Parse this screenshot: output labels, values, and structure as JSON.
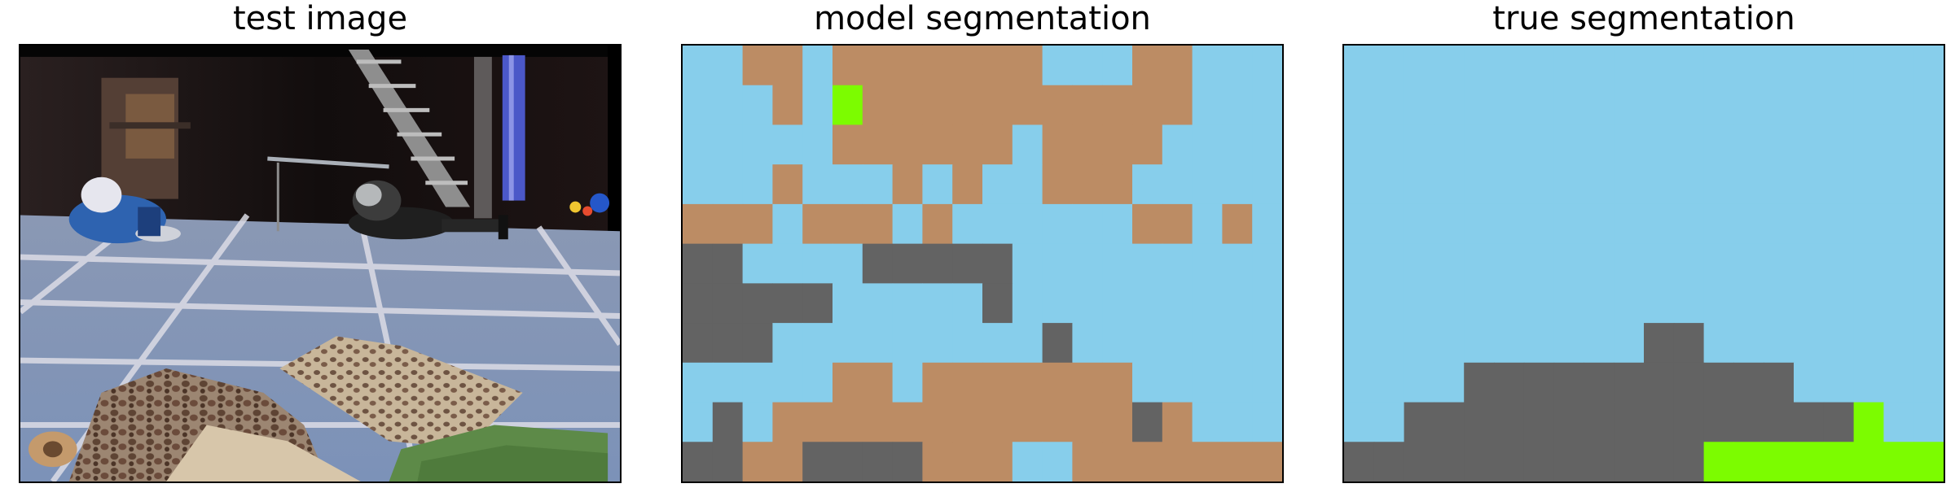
{
  "panels": [
    {
      "id": "test",
      "title": "test image"
    },
    {
      "id": "model",
      "title": "model segmentation"
    },
    {
      "id": "true",
      "title": "true segmentation"
    }
  ],
  "palette": {
    "B": "#87ceeb",
    "R": "#bc8c64",
    "G": "#636363",
    "L": "#7cfc00"
  },
  "grid": {
    "cols": 20,
    "rows": 11
  },
  "model_segmentation": [
    "BBRRBRRRRRRRBBBRRBBB",
    "BBBRBLRRRRRRRRRRRBBB",
    "BBBBBRRRRRRBRRRRBBBB",
    "BBBRBBBRBRBBRRRBBBBB",
    "RRRBRRRBRBBBBBBRRBRB",
    "GGBBBBGGGGGBBBBBBBBB",
    "GGGGGBBBBBGBBBBBBBBB",
    "GGGBBBBBBBBBGBBBBBBB",
    "BBBBBRRBRRRRRRRBBBBB",
    "BGBRRRRRRRRRRRRGRBBB",
    "GGRRGGGGRRRBBRRRRRRR"
  ],
  "true_segmentation": [
    "BBBBBBBBBBBBBBBBBBBB",
    "BBBBBBBBBBBBBBBBBBBB",
    "BBBBBBBBBBBBBBBBBBBB",
    "BBBBBBBBBBBBBBBBBBBB",
    "BBBBBBBBBBBBBBBBBBBB",
    "BBBBBBBBBBBBBBBBBBBB",
    "BBBBBBBBBBBBBBBBBBBB",
    "BBBBBBBBBBGGBBBBBBBB",
    "BBBBGGGGGGGGGGGBBBBB",
    "BBGGGGGGGGGGGGGGGLBB",
    "GGGGGGGGGGGGLLLLLLLL"
  ]
}
